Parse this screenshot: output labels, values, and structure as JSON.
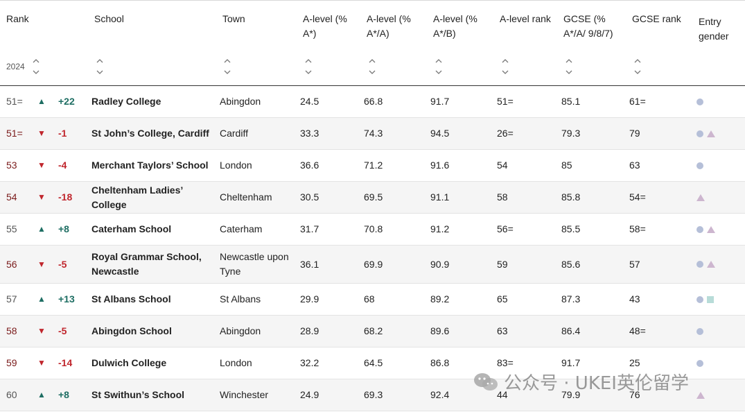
{
  "headers": {
    "rank": "Rank",
    "year": "2024",
    "school": "School",
    "town": "Town",
    "a_level_a_star": [
      "A-level (%",
      "A*)"
    ],
    "a_level_a_star_a": [
      "A-level (%",
      "A*/A)"
    ],
    "a_level_a_star_b": [
      "A-level (%",
      "A*/B)"
    ],
    "a_level_rank": "A-level rank",
    "gcse": [
      "GCSE (%",
      "A*/A/ 9/8/7)"
    ],
    "gcse_rank": "GCSE rank",
    "entry_gender": [
      "Entry",
      "gender"
    ]
  },
  "rows": [
    {
      "rank": "51=",
      "direction": "up",
      "arrow": "▲",
      "change": "+22",
      "school": [
        "Radley College"
      ],
      "town": [
        "Abingdon"
      ],
      "a_star": "24.5",
      "a_star_a": "66.8",
      "a_star_b": "91.7",
      "a_level_rank": "51=",
      "gcse": "85.1",
      "gcse_rank": "61=",
      "gender": [
        "dot"
      ]
    },
    {
      "rank": "51=",
      "direction": "down",
      "arrow": "▼",
      "change": "-1",
      "school": [
        "St John’s College, Cardiff"
      ],
      "town": [
        "Cardiff"
      ],
      "a_star": "33.3",
      "a_star_a": "74.3",
      "a_star_b": "94.5",
      "a_level_rank": "26=",
      "gcse": "79.3",
      "gcse_rank": "79",
      "gender": [
        "dot",
        "triangle"
      ]
    },
    {
      "rank": "53",
      "direction": "down",
      "arrow": "▼",
      "change": "-4",
      "school": [
        "Merchant Taylors’ School"
      ],
      "town": [
        "London"
      ],
      "a_star": "36.6",
      "a_star_a": "71.2",
      "a_star_b": "91.6",
      "a_level_rank": "54",
      "gcse": "85",
      "gcse_rank": "63",
      "gender": [
        "dot"
      ]
    },
    {
      "rank": "54",
      "direction": "down",
      "arrow": "▼",
      "change": "-18",
      "school": [
        "Cheltenham Ladies’ College"
      ],
      "town": [
        "Cheltenham"
      ],
      "a_star": "30.5",
      "a_star_a": "69.5",
      "a_star_b": "91.1",
      "a_level_rank": "58",
      "gcse": "85.8",
      "gcse_rank": "54=",
      "gender": [
        "triangle"
      ]
    },
    {
      "rank": "55",
      "direction": "up",
      "arrow": "▲",
      "change": "+8",
      "school": [
        "Caterham School"
      ],
      "town": [
        "Caterham"
      ],
      "a_star": "31.7",
      "a_star_a": "70.8",
      "a_star_b": "91.2",
      "a_level_rank": "56=",
      "gcse": "85.5",
      "gcse_rank": "58=",
      "gender": [
        "dot",
        "triangle"
      ]
    },
    {
      "rank": "56",
      "direction": "down",
      "arrow": "▼",
      "change": "-5",
      "school": [
        "Royal Grammar School,",
        "Newcastle"
      ],
      "town": [
        "Newcastle upon",
        "Tyne"
      ],
      "a_star": "36.1",
      "a_star_a": "69.9",
      "a_star_b": "90.9",
      "a_level_rank": "59",
      "gcse": "85.6",
      "gcse_rank": "57",
      "gender": [
        "dot",
        "triangle"
      ]
    },
    {
      "rank": "57",
      "direction": "up",
      "arrow": "▲",
      "change": "+13",
      "school": [
        "St Albans School"
      ],
      "town": [
        "St Albans"
      ],
      "a_star": "29.9",
      "a_star_a": "68",
      "a_star_b": "89.2",
      "a_level_rank": "65",
      "gcse": "87.3",
      "gcse_rank": "43",
      "gender": [
        "dot",
        "square"
      ]
    },
    {
      "rank": "58",
      "direction": "down",
      "arrow": "▼",
      "change": "-5",
      "school": [
        "Abingdon School"
      ],
      "town": [
        "Abingdon"
      ],
      "a_star": "28.9",
      "a_star_a": "68.2",
      "a_star_b": "89.6",
      "a_level_rank": "63",
      "gcse": "86.4",
      "gcse_rank": "48=",
      "gender": [
        "dot"
      ]
    },
    {
      "rank": "59",
      "direction": "down",
      "arrow": "▼",
      "change": "-14",
      "school": [
        "Dulwich College"
      ],
      "town": [
        "London"
      ],
      "a_star": "32.2",
      "a_star_a": "64.5",
      "a_star_b": "86.8",
      "a_level_rank": "83=",
      "gcse": "91.7",
      "gcse_rank": "25",
      "gender": [
        "dot"
      ]
    },
    {
      "rank": "60",
      "direction": "up",
      "arrow": "▲",
      "change": "+8",
      "school": [
        "St Swithun’s School"
      ],
      "town": [
        "Winchester"
      ],
      "a_star": "24.9",
      "a_star_a": "69.3",
      "a_star_b": "92.4",
      "a_level_rank": "44",
      "gcse": "79.9",
      "gcse_rank": "76",
      "gender": [
        "triangle"
      ]
    }
  ],
  "watermark": {
    "text": "公众号 · UKEI英伦留学",
    "icon": "wechat-icon"
  },
  "colors": {
    "up": "#1e6e63",
    "down": "#c0262d",
    "dot": "#b5bfd8",
    "triangle": "#cdb6cf",
    "square": "#b8dcd8"
  }
}
